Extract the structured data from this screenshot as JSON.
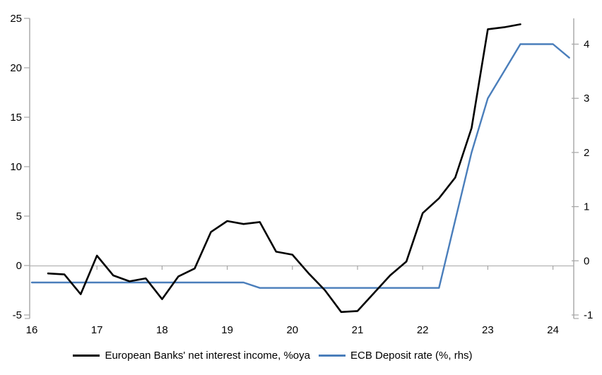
{
  "chart_data": {
    "type": "line",
    "title": "",
    "x_axis": {
      "tick_labels": [
        "16",
        "17",
        "18",
        "19",
        "20",
        "21",
        "22",
        "23",
        "24"
      ],
      "tick_values": [
        16,
        17,
        18,
        19,
        20,
        21,
        22,
        23,
        24
      ],
      "range_years": [
        16,
        24.33
      ]
    },
    "left_axis": {
      "label": "",
      "tick_labels": [
        "25",
        "20",
        "15",
        "10",
        "5",
        "0",
        "-5"
      ],
      "tick_values": [
        25,
        20,
        15,
        10,
        5,
        0,
        -5
      ],
      "range": [
        -5.5,
        25
      ]
    },
    "right_axis": {
      "label": "",
      "tick_labels": [
        "4",
        "3",
        "2",
        "1",
        "0",
        "-1"
      ],
      "tick_values": [
        4,
        3,
        2,
        1,
        0,
        -1
      ],
      "range": [
        -1.1,
        4.45
      ]
    },
    "zero_gridline": true,
    "grid": "zero-line-only",
    "legend_position": "bottom",
    "series": [
      {
        "name": "European Banks' net interest income, %oya",
        "axis": "left",
        "color": "#000000",
        "line_width": 2.6,
        "x": [
          16.25,
          16.5,
          16.75,
          17.0,
          17.25,
          17.5,
          17.75,
          18.0,
          18.25,
          18.5,
          18.75,
          19.0,
          19.25,
          19.5,
          19.75,
          20.0,
          20.25,
          20.5,
          20.75,
          21.0,
          21.25,
          21.5,
          21.75,
          22.0,
          22.25,
          22.5,
          22.75,
          23.0,
          23.25,
          23.5
        ],
        "values": [
          -0.8,
          -0.9,
          -2.9,
          1.0,
          -1.0,
          -1.6,
          -1.3,
          -3.4,
          -1.1,
          -0.3,
          3.4,
          4.5,
          4.2,
          4.4,
          1.4,
          1.1,
          -0.8,
          -2.5,
          -4.7,
          -4.6,
          -2.8,
          -1.0,
          0.4,
          5.3,
          6.8,
          8.9,
          13.9,
          23.9,
          24.1,
          24.4
        ]
      },
      {
        "name": "ECB Deposit rate (%, rhs)",
        "axis": "right",
        "color": "#4a7ebb",
        "line_width": 2.4,
        "x": [
          16.0,
          16.25,
          16.5,
          16.75,
          17.0,
          17.25,
          17.5,
          17.75,
          18.0,
          18.25,
          18.5,
          18.75,
          19.0,
          19.25,
          19.5,
          19.75,
          20.0,
          20.25,
          20.5,
          20.75,
          21.0,
          21.25,
          21.5,
          21.75,
          22.0,
          22.25,
          22.5,
          22.75,
          23.0,
          23.25,
          23.5,
          23.75,
          24.0,
          24.25
        ],
        "values": [
          -0.4,
          -0.4,
          -0.4,
          -0.4,
          -0.4,
          -0.4,
          -0.4,
          -0.4,
          -0.4,
          -0.4,
          -0.4,
          -0.4,
          -0.4,
          -0.4,
          -0.5,
          -0.5,
          -0.5,
          -0.5,
          -0.5,
          -0.5,
          -0.5,
          -0.5,
          -0.5,
          -0.5,
          -0.5,
          -0.5,
          0.75,
          2.0,
          3.0,
          3.5,
          4.0,
          4.0,
          4.0,
          3.75
        ]
      }
    ]
  },
  "colors": {
    "background": "#ffffff",
    "axis": "#a6a6a6",
    "zero_gridline": "#b3b3b3",
    "text": "#000000",
    "series_nii": "#000000",
    "series_ecb": "#4a7ebb"
  }
}
